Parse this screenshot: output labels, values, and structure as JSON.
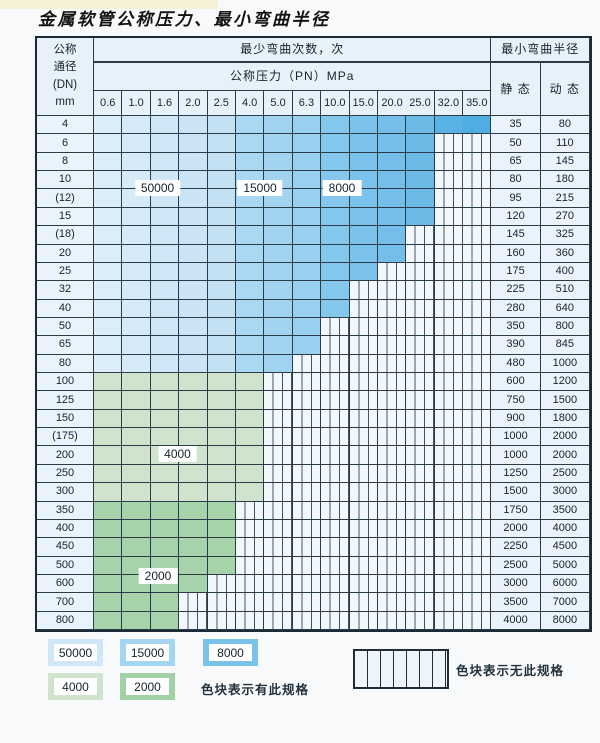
{
  "title": "金属软管公称压力、最小弯曲半径",
  "table": {
    "corner": [
      "公称",
      "通径",
      "(DN)",
      "mm"
    ],
    "cycles_header": "最少弯曲次数，次",
    "pressure_header": "公称压力（PN）MPa",
    "radius_header": "最小弯曲半径",
    "static_header": "静 态",
    "dynamic_header": "动 态",
    "pressure_cols": [
      "0.6",
      "1.0",
      "1.6",
      "2.0",
      "2.5",
      "4.0",
      "5.0",
      "6.3",
      "10.0",
      "15.0",
      "20.0",
      "25.0",
      "32.0",
      "35.0"
    ],
    "rows": [
      {
        "dn": "4",
        "band": "blue",
        "colored": 14,
        "static": "35",
        "dynamic": "80"
      },
      {
        "dn": "6",
        "band": "blue",
        "colored": 12,
        "static": "50",
        "dynamic": "110"
      },
      {
        "dn": "8",
        "band": "blue",
        "colored": 12,
        "static": "65",
        "dynamic": "145"
      },
      {
        "dn": "10",
        "band": "blue",
        "colored": 12,
        "static": "80",
        "dynamic": "180"
      },
      {
        "dn": "(12)",
        "band": "blue",
        "colored": 12,
        "static": "95",
        "dynamic": "215"
      },
      {
        "dn": "15",
        "band": "blue",
        "colored": 12,
        "static": "120",
        "dynamic": "270"
      },
      {
        "dn": "(18)",
        "band": "blue",
        "colored": 11,
        "static": "145",
        "dynamic": "325"
      },
      {
        "dn": "20",
        "band": "blue",
        "colored": 11,
        "static": "160",
        "dynamic": "360"
      },
      {
        "dn": "25",
        "band": "blue",
        "colored": 10,
        "static": "175",
        "dynamic": "400"
      },
      {
        "dn": "32",
        "band": "blue",
        "colored": 9,
        "static": "225",
        "dynamic": "510"
      },
      {
        "dn": "40",
        "band": "blue",
        "colored": 9,
        "static": "280",
        "dynamic": "640"
      },
      {
        "dn": "50",
        "band": "blue",
        "colored": 8,
        "static": "350",
        "dynamic": "800"
      },
      {
        "dn": "65",
        "band": "blue",
        "colored": 8,
        "static": "390",
        "dynamic": "845"
      },
      {
        "dn": "80",
        "band": "blue",
        "colored": 7,
        "static": "480",
        "dynamic": "1000"
      },
      {
        "dn": "100",
        "band": "g4000",
        "colored": 6,
        "static": "600",
        "dynamic": "1200"
      },
      {
        "dn": "125",
        "band": "g4000",
        "colored": 6,
        "static": "750",
        "dynamic": "1500"
      },
      {
        "dn": "150",
        "band": "g4000",
        "colored": 6,
        "static": "900",
        "dynamic": "1800"
      },
      {
        "dn": "(175)",
        "band": "g4000",
        "colored": 6,
        "static": "1000",
        "dynamic": "2000"
      },
      {
        "dn": "200",
        "band": "g4000",
        "colored": 6,
        "static": "1000",
        "dynamic": "2000"
      },
      {
        "dn": "250",
        "band": "g4000",
        "colored": 6,
        "static": "1250",
        "dynamic": "2500"
      },
      {
        "dn": "300",
        "band": "g4000",
        "colored": 6,
        "static": "1500",
        "dynamic": "3000"
      },
      {
        "dn": "350",
        "band": "g2000",
        "colored": 5,
        "static": "1750",
        "dynamic": "3500"
      },
      {
        "dn": "400",
        "band": "g2000",
        "colored": 5,
        "static": "2000",
        "dynamic": "4000"
      },
      {
        "dn": "450",
        "band": "g2000",
        "colored": 5,
        "static": "2250",
        "dynamic": "4500"
      },
      {
        "dn": "500",
        "band": "g2000",
        "colored": 5,
        "static": "2500",
        "dynamic": "5000"
      },
      {
        "dn": "600",
        "band": "g2000",
        "colored": 4,
        "static": "3000",
        "dynamic": "6000"
      },
      {
        "dn": "700",
        "band": "g2000",
        "colored": 3,
        "static": "3500",
        "dynamic": "7000"
      },
      {
        "dn": "800",
        "band": "g2000",
        "colored": 3,
        "static": "4000",
        "dynamic": "8000"
      }
    ]
  },
  "region_labels": [
    {
      "text": "50000"
    },
    {
      "text": "15000"
    },
    {
      "text": "8000"
    },
    {
      "text": "4000"
    },
    {
      "text": "2000"
    }
  ],
  "legend": {
    "has_spec_items": [
      {
        "label": "50000",
        "color": "#cfe7f7"
      },
      {
        "label": "15000",
        "color": "#a4d5f1"
      },
      {
        "label": "8000",
        "color": "#79c2ea"
      },
      {
        "label": "4000",
        "color": "#cfe3cd"
      },
      {
        "label": "2000",
        "color": "#a2d1a6"
      }
    ],
    "has_spec_note": "色块表示有此规格",
    "no_spec_note": "色块表示无此规格"
  },
  "colors": {
    "cycles_50000": "#cfe7f7",
    "cycles_15000": "#a4d5f1",
    "cycles_8000": "#79c2ea",
    "cycles_4000": "#cfe3cd",
    "cycles_2000": "#a2d1a6",
    "grid_line": "#2a3c48",
    "header_bg": "#e7f1f9"
  }
}
